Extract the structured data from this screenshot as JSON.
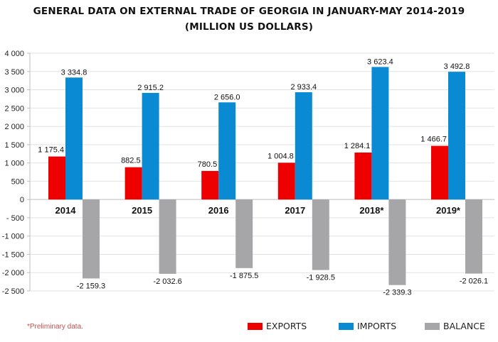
{
  "title_line1": "GENERAL DATA ON EXTERNAL TRADE OF GEORGIA IN JANUARY-MAY 2014-2019",
  "title_line2": "(MILLION US DOLLARS)",
  "footnote": "*Preliminary data.",
  "legend": [
    {
      "label": "EXPORTS",
      "color": "#ee0000"
    },
    {
      "label": "IMPORTS",
      "color": "#0a8ad2"
    },
    {
      "label": "BALANCE",
      "color": "#a6a6a9"
    }
  ],
  "chart_data": {
    "type": "bar",
    "title": "GENERAL DATA ON EXTERNAL TRADE OF GEORGIA IN JANUARY-MAY 2014-2019 (MILLION US DOLLARS)",
    "xlabel": "",
    "ylabel": "",
    "categories": [
      "2014",
      "2015",
      "2016",
      "2017",
      "2018*",
      "2019*"
    ],
    "series": [
      {
        "name": "EXPORTS",
        "color": "#ee0000",
        "values": [
          1175.4,
          882.5,
          780.5,
          1004.8,
          1284.1,
          1466.7
        ],
        "labels": [
          "1 175.4",
          "882.5",
          "780.5",
          "1 004.8",
          "1 284.1",
          "1 466.7"
        ]
      },
      {
        "name": "IMPORTS",
        "color": "#0a8ad2",
        "values": [
          3334.8,
          2915.2,
          2656.0,
          2933.4,
          3623.4,
          3492.8
        ],
        "labels": [
          "3 334.8",
          "2 915.2",
          "2 656.0",
          "2 933.4",
          "3 623.4",
          "3 492.8"
        ]
      },
      {
        "name": "BALANCE",
        "color": "#a6a6a9",
        "values": [
          -2159.3,
          -2032.6,
          -1875.5,
          -1928.5,
          -2339.3,
          -2026.1
        ],
        "labels": [
          "-2 159.3",
          "-2 032.6",
          "-1 875.5",
          "-1 928.5",
          "-2 339.3",
          "-2 026.1"
        ]
      }
    ],
    "ylim": [
      -2500,
      4000
    ],
    "yticks": [
      4000,
      3500,
      3000,
      2500,
      2000,
      1500,
      1000,
      500,
      0,
      -500,
      -1000,
      -1500,
      -2000,
      -2500
    ],
    "ytick_labels": [
      "4 000",
      "3 500",
      "3 000",
      "2 500",
      "2 000",
      "1 500",
      "1 000",
      "500",
      "0",
      "- 500",
      "-1 000",
      "-1 500",
      "-2 000",
      "-2 500"
    ],
    "grid": true,
    "legend_position": "bottom-right",
    "footnote": "*Preliminary data."
  }
}
